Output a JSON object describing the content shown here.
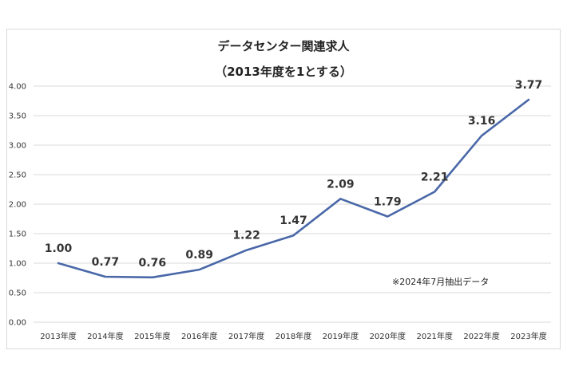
{
  "chart_data": {
    "type": "line",
    "title": "データセンター関連求人",
    "subtitle": "（2013年度を1とする）",
    "categories": [
      "2013年度",
      "2014年度",
      "2015年度",
      "2016年度",
      "2017年度",
      "2018年度",
      "2019年度",
      "2020年度",
      "2021年度",
      "2022年度",
      "2023年度"
    ],
    "series": [
      {
        "name": "データセンター関連求人",
        "values": [
          1.0,
          0.77,
          0.76,
          0.89,
          1.22,
          1.47,
          2.09,
          1.79,
          2.21,
          3.16,
          3.77
        ],
        "labels": [
          "1.00",
          "0.77",
          "0.76",
          "0.89",
          "1.22",
          "1.47",
          "2.09",
          "1.79",
          "2.21",
          "3.16",
          "3.77"
        ]
      }
    ],
    "ylim": [
      0,
      4
    ],
    "yticks": [
      "0.00",
      "0.50",
      "1.00",
      "1.50",
      "2.00",
      "2.50",
      "3.00",
      "3.50",
      "4.00"
    ],
    "xlabel": "",
    "ylabel": "",
    "grid": true,
    "note": "※2024年7月抽出データ",
    "line_color": "#4a68a8",
    "grid_color": "#d9d9d9"
  }
}
